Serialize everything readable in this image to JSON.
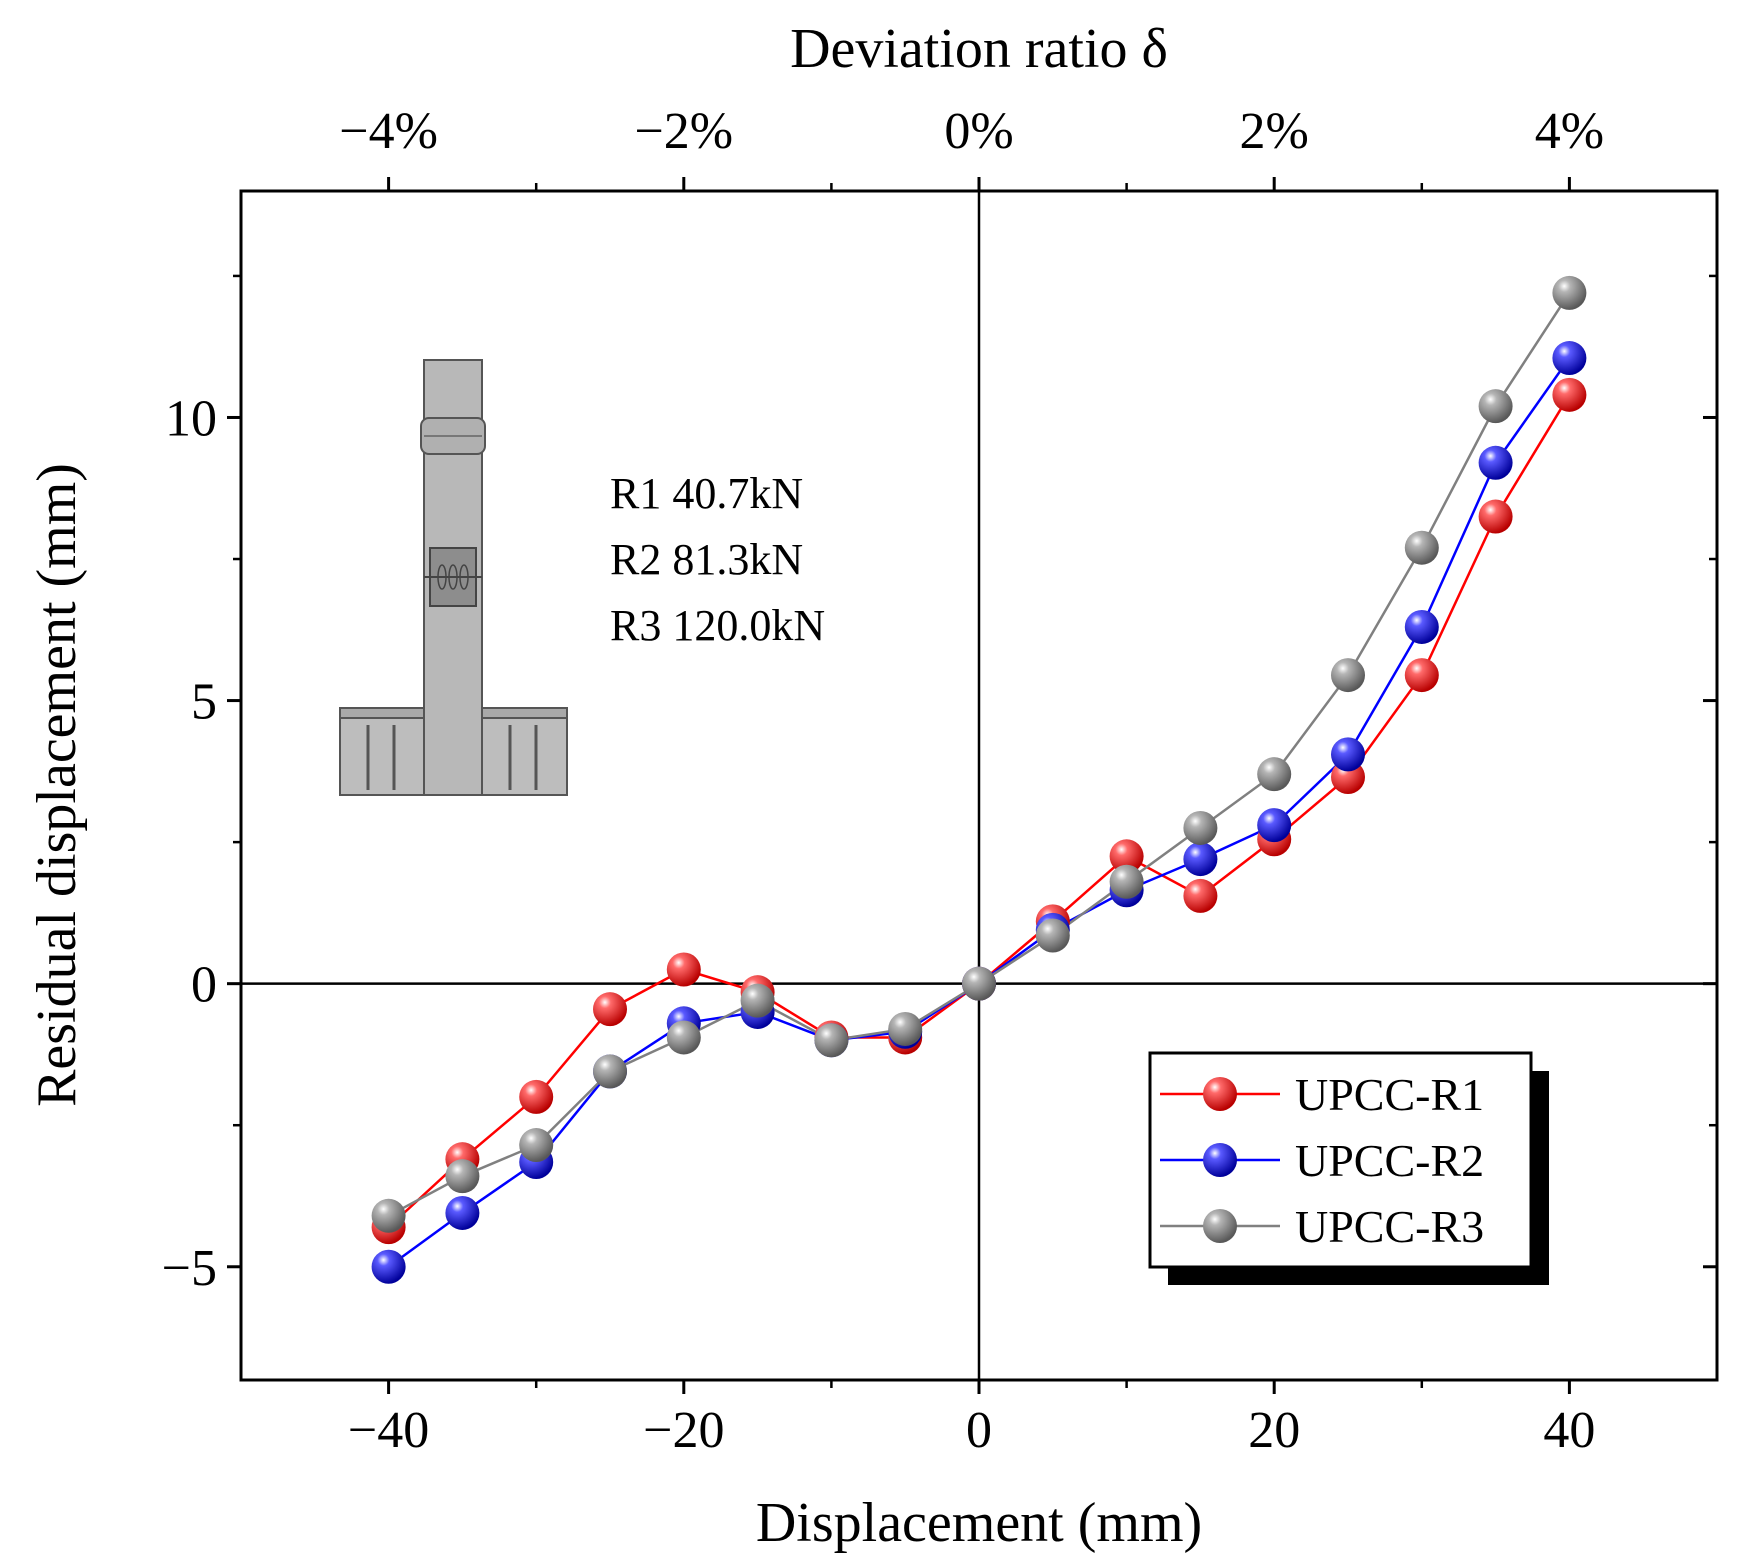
{
  "chart_data": {
    "type": "line",
    "title": "",
    "xlabel": "Displacement (mm)",
    "ylabel": "Residual displacement (mm)",
    "top_xlabel": "Deviation ratio δ",
    "xlim": [
      -50,
      50
    ],
    "ylim": [
      -7,
      14
    ],
    "x_ticks": [
      -40,
      -20,
      0,
      20,
      40
    ],
    "x_tick_labels": [
      "−40",
      "−20",
      "0",
      "20",
      "40"
    ],
    "y_ticks": [
      -5,
      0,
      5,
      10
    ],
    "y_tick_labels": [
      "−5",
      "0",
      "5",
      "10"
    ],
    "top_ticks": [
      -40,
      -20,
      0,
      20,
      40
    ],
    "top_tick_labels": [
      "−4%",
      "−2%",
      "0%",
      "2%",
      "4%"
    ],
    "grid": false,
    "zero_lines": true,
    "legend_position": "bottom-right",
    "x": [
      -40,
      -35,
      -30,
      -25,
      -20,
      -15,
      -10,
      -5,
      0,
      5,
      10,
      15,
      20,
      25,
      30,
      35,
      40
    ],
    "series": [
      {
        "name": "UPCC-R1",
        "color": "#ff0000",
        "values": [
          -4.3,
          -3.1,
          -2.0,
          -0.45,
          0.25,
          -0.15,
          -0.95,
          -0.95,
          0.0,
          1.1,
          2.25,
          1.55,
          2.55,
          3.65,
          5.45,
          8.25,
          10.4
        ]
      },
      {
        "name": "UPCC-R2",
        "color": "#0000ff",
        "values": [
          -5.0,
          -4.05,
          -3.15,
          -1.55,
          -0.7,
          -0.5,
          -1.0,
          -0.85,
          0.0,
          0.95,
          1.65,
          2.2,
          2.8,
          4.05,
          6.3,
          9.2,
          11.05
        ]
      },
      {
        "name": "UPCC-R3",
        "color": "#808080",
        "values": [
          -4.1,
          -3.4,
          -2.85,
          -1.55,
          -0.95,
          -0.3,
          -1.0,
          -0.8,
          0.0,
          0.85,
          1.8,
          2.75,
          3.7,
          5.45,
          7.7,
          10.2,
          12.2
        ]
      }
    ],
    "annotations": [
      "R1 40.7kN",
      "R2 81.3kN",
      "R3 120.0kN"
    ]
  }
}
